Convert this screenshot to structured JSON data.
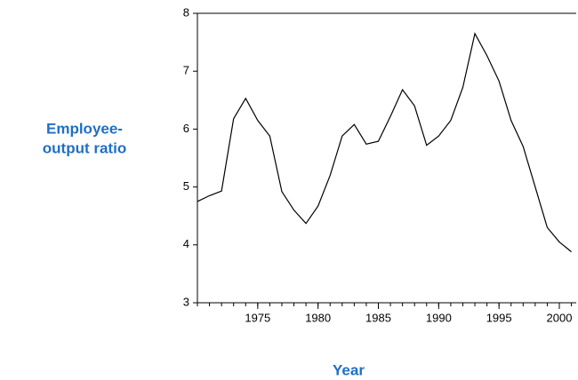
{
  "chart_data": {
    "type": "line",
    "ylabel": [
      "Employee-",
      "output ratio"
    ],
    "xlabel": "Year",
    "x": [
      1970,
      1971,
      1972,
      1973,
      1974,
      1975,
      1976,
      1977,
      1978,
      1979,
      1980,
      1981,
      1982,
      1983,
      1984,
      1985,
      1986,
      1987,
      1988,
      1989,
      1990,
      1991,
      1992,
      1993,
      1994,
      1995,
      1996,
      1997,
      1998,
      1999,
      2000,
      2001
    ],
    "series": [
      {
        "color": "#000000",
        "values": [
          4.75,
          4.85,
          4.93,
          6.18,
          6.53,
          6.15,
          5.88,
          4.92,
          4.6,
          4.37,
          4.67,
          5.2,
          5.88,
          6.08,
          5.74,
          5.79,
          6.22,
          6.68,
          6.4,
          5.72,
          5.88,
          6.15,
          6.72,
          7.65,
          7.27,
          6.83,
          6.15,
          5.7,
          5.0,
          4.3,
          4.05,
          3.88
        ]
      }
    ],
    "xlim": [
      1970,
      2001.4
    ],
    "xticks": [
      1975,
      1980,
      1985,
      1990,
      1995,
      2000
    ],
    "xminorticks": [
      1970,
      1971,
      1972,
      1973,
      1974,
      1975,
      1976,
      1977,
      1978,
      1979,
      1980,
      1981,
      1982,
      1983,
      1984,
      1985,
      1986,
      1987,
      1988,
      1989,
      1990,
      1991,
      1992,
      1993,
      1994,
      1995,
      1996,
      1997,
      1998,
      1999,
      2000,
      2001
    ],
    "ylim": [
      3,
      8
    ],
    "yticks": [
      3,
      4,
      5,
      6,
      7,
      8
    ]
  }
}
